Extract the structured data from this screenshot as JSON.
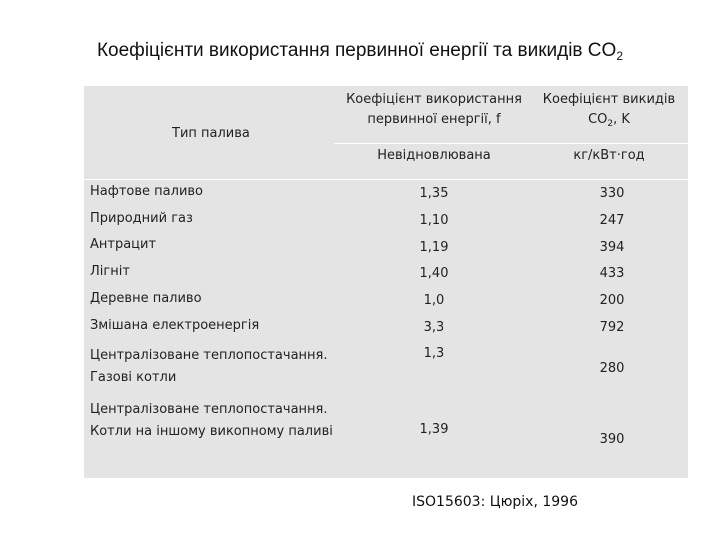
{
  "title": {
    "main": "Коефіцієнти використання первинної енергії та викидів CO",
    "subscript": "2"
  },
  "table": {
    "header": {
      "fuel_type": "Тип палива",
      "energy_coef_line1": "Коефіцієнт використання",
      "energy_coef_line2": "первинної енергії, f",
      "co2_coef_line1": "Коефіцієнт викидів",
      "co2_coef_line2_a": "CO",
      "co2_coef_line2_sub": "2",
      "co2_coef_line2_b": ", K",
      "energy_unit": "Невідновлювана",
      "co2_unit": "кг/кВт·год"
    },
    "rows": [
      {
        "fuel": "Нафтове паливо",
        "f": "1,35",
        "k": "330"
      },
      {
        "fuel": "Природний газ",
        "f": "1,10",
        "k": "247"
      },
      {
        "fuel": "Антрацит",
        "f": "1,19",
        "k": "394"
      },
      {
        "fuel": "Лігніт",
        "f": "1,40",
        "k": "433"
      },
      {
        "fuel": "Деревне паливо",
        "f": "1,0",
        "k": "200"
      },
      {
        "fuel": "Змішана електроенергія",
        "f": "3,3",
        "k": "792"
      },
      {
        "fuel_line1": "Централізоване теплопостачання.",
        "fuel_line2": "Газові котли",
        "f": "1,3",
        "k": "280"
      },
      {
        "fuel_line1": "Централізоване теплопостачання.",
        "fuel_line2": "Котли на іншому викопному паливі",
        "f": "1,39",
        "k": "390"
      }
    ]
  },
  "source": "ISO15603: Цюріх, 1996"
}
